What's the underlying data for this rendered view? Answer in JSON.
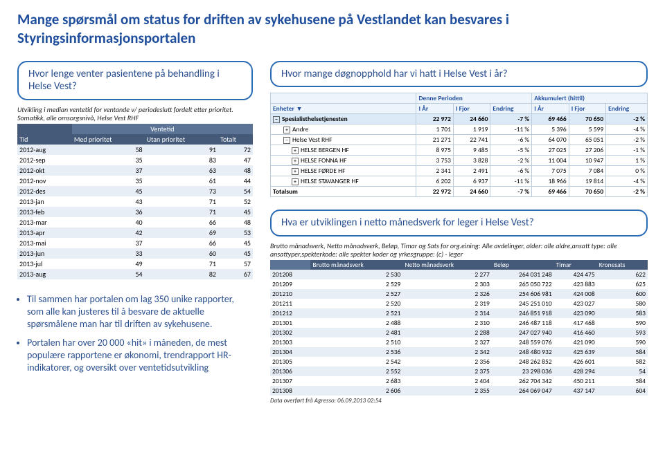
{
  "title": "Mange spørsmål om status for driften av sykehusene på Vestlandet kan besvares i Styringsinformasjonsportalen",
  "left": {
    "bubble": "Hvor lenge venter pasientene på behandling i Helse Vest?",
    "caption": "Utvikling i median ventetid for ventande v/ periodeslutt fordelt etter prioritet. Somatikk, alle omsorgsnivå, Helse Vest RHF",
    "super_header": "Ventetid",
    "cols": [
      "Tid",
      "Med prioritet",
      "Utan prioritet",
      "Totalt"
    ],
    "rows": [
      [
        "2012-aug",
        "58",
        "91",
        "72"
      ],
      [
        "2012-sep",
        "35",
        "83",
        "47"
      ],
      [
        "2012-okt",
        "37",
        "63",
        "48"
      ],
      [
        "2012-nov",
        "35",
        "61",
        "44"
      ],
      [
        "2012-des",
        "45",
        "73",
        "54"
      ],
      [
        "2013-jan",
        "43",
        "71",
        "52"
      ],
      [
        "2013-feb",
        "36",
        "71",
        "45"
      ],
      [
        "2013-mar",
        "40",
        "66",
        "48"
      ],
      [
        "2013-apr",
        "42",
        "69",
        "53"
      ],
      [
        "2013-mai",
        "37",
        "66",
        "45"
      ],
      [
        "2013-jun",
        "33",
        "60",
        "45"
      ],
      [
        "2013-jul",
        "49",
        "71",
        "57"
      ],
      [
        "2013-aug",
        "54",
        "82",
        "67"
      ]
    ],
    "bullets": [
      "Til sammen har portalen om lag 350 unike rapporter, som alle kan justeres til å besvare de aktuelle spørsmålene man har til driften av sykehusene.",
      "Portalen har over 20 000 «hit» i måneden, de mest populære rapportene er økonomi, trendrapport HR-indikatorer, og oversikt over ventetidsutvikling"
    ]
  },
  "right1": {
    "bubble": "Hvor mange døgnopphold har vi hatt i Helse Vest i år?",
    "header_groups": [
      "",
      "Denne Perioden",
      "Akkumulert (hittil)"
    ],
    "cols": [
      "Enheter",
      "I År",
      "I Fjor",
      "Endring",
      "I År",
      "I Fjor",
      "Endring"
    ],
    "rows": [
      {
        "type": "grp",
        "icon": "−",
        "cells": [
          "Spesialisthelsetjenesten",
          "22 972",
          "24 660",
          "-7 %",
          "69 466",
          "70 650",
          "-2 %"
        ]
      },
      {
        "type": "sub",
        "icon": "+",
        "cells": [
          "Andre",
          "1 701",
          "1 919",
          "-11 %",
          "5 396",
          "5 599",
          "-4 %"
        ]
      },
      {
        "type": "sub",
        "icon": "−",
        "cells": [
          "Helse Vest RHF",
          "21 271",
          "22 741",
          "-6 %",
          "64 070",
          "65 051",
          "-2 %"
        ]
      },
      {
        "type": "sub2",
        "icon": "+",
        "cells": [
          "HELSE BERGEN HF",
          "8 975",
          "9 485",
          "-5 %",
          "27 025",
          "27 206",
          "-1 %"
        ]
      },
      {
        "type": "sub2",
        "icon": "+",
        "cells": [
          "HELSE FONNA HF",
          "3 753",
          "3 828",
          "-2 %",
          "11 004",
          "10 947",
          "1 %"
        ]
      },
      {
        "type": "sub2",
        "icon": "+",
        "cells": [
          "HELSE FØRDE HF",
          "2 341",
          "2 491",
          "-6 %",
          "7 075",
          "7 084",
          "0 %"
        ]
      },
      {
        "type": "sub2",
        "icon": "+",
        "cells": [
          "HELSE STAVANGER HF",
          "6 202",
          "6 937",
          "-11 %",
          "18 966",
          "19 814",
          "-4 %"
        ]
      },
      {
        "type": "tot",
        "icon": "",
        "cells": [
          "Totalsum",
          "22 972",
          "24 660",
          "-7 %",
          "69 466",
          "70 650",
          "-2 %"
        ]
      }
    ]
  },
  "right2": {
    "bubble": "Hva er utviklingen i netto månedsverk for leger i Helse Vest?",
    "caption": "Brutto månadsverk, Netto månadsverk, Beløp, Timar og Sats for org.eining: Alle avdelinger, alder: alle aldre,ansatt type: alle ansattyper,spekterkode: alle spekter koder og yrkesgruppe: (c) - leger",
    "cols": [
      "",
      "Brutto månadsverk",
      "Netto månadsverk",
      "Beløp",
      "Timar",
      "Kronesats"
    ],
    "rows": [
      [
        "201208",
        "2 530",
        "2 277",
        "264 031 248",
        "424 475",
        "622"
      ],
      [
        "201209",
        "2 529",
        "2 303",
        "265 050 722",
        "423 883",
        "625"
      ],
      [
        "201210",
        "2 527",
        "2 326",
        "254 606 981",
        "424 008",
        "600"
      ],
      [
        "201211",
        "2 520",
        "2 319",
        "245 251 010",
        "423 027",
        "580"
      ],
      [
        "201212",
        "2 521",
        "2 314",
        "246 851 918",
        "423 090",
        "583"
      ],
      [
        "201301",
        "2 488",
        "2 310",
        "246 487 118",
        "417 468",
        "590"
      ],
      [
        "201302",
        "2 481",
        "2 288",
        "247 027 940",
        "416 460",
        "593"
      ],
      [
        "201303",
        "2 510",
        "2 327",
        "248 559 076",
        "421 090",
        "590"
      ],
      [
        "201304",
        "2 536",
        "2 342",
        "248 480 932",
        "425 639",
        "584"
      ],
      [
        "201305",
        "2 542",
        "2 356",
        "248 262 852",
        "426 601",
        "582"
      ],
      [
        "201306",
        "2 552",
        "2 375",
        "23 298 036",
        "428 294",
        "54"
      ],
      [
        "201307",
        "2 683",
        "2 404",
        "262 704 342",
        "450 211",
        "584"
      ],
      [
        "201308",
        "2 606",
        "2 355",
        "264 069 047",
        "437 147",
        "604"
      ]
    ],
    "footer": "Data overført frå Agresso: 06.09.2013 02:54"
  }
}
